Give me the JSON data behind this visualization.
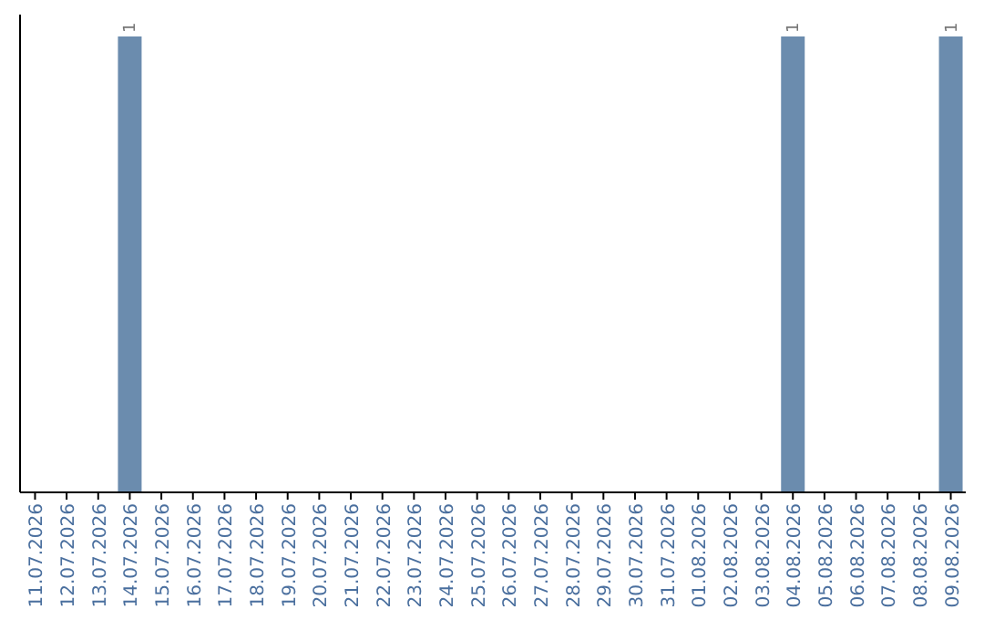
{
  "chart_data": {
    "type": "bar",
    "categories": [
      "11.07.2026",
      "12.07.2026",
      "13.07.2026",
      "14.07.2026",
      "15.07.2026",
      "16.07.2026",
      "17.07.2026",
      "18.07.2026",
      "19.07.2026",
      "20.07.2026",
      "21.07.2026",
      "22.07.2026",
      "23.07.2026",
      "24.07.2026",
      "25.07.2026",
      "26.07.2026",
      "27.07.2026",
      "28.07.2026",
      "29.07.2026",
      "30.07.2026",
      "31.07.2026",
      "01.08.2026",
      "02.08.2026",
      "03.08.2026",
      "04.08.2026",
      "05.08.2026",
      "06.08.2026",
      "07.08.2026",
      "08.08.2026",
      "09.08.2026"
    ],
    "values": [
      0,
      0,
      0,
      1,
      0,
      0,
      0,
      0,
      0,
      0,
      0,
      0,
      0,
      0,
      0,
      0,
      0,
      0,
      0,
      0,
      0,
      0,
      0,
      0,
      1,
      0,
      0,
      0,
      0,
      1
    ],
    "value_labels": [
      null,
      null,
      null,
      "1",
      null,
      null,
      null,
      null,
      null,
      null,
      null,
      null,
      null,
      null,
      null,
      null,
      null,
      null,
      null,
      null,
      null,
      null,
      null,
      null,
      "1",
      null,
      null,
      null,
      null,
      "1"
    ],
    "color": "#6b8cae"
  }
}
